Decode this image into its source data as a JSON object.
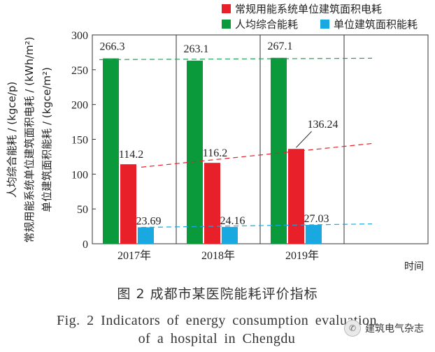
{
  "chart_data": {
    "type": "bar",
    "categories": [
      "2017年",
      "2018年",
      "2019年"
    ],
    "series": [
      {
        "name": "人均综合能耗",
        "color": "#0a9a3c",
        "values": [
          266.3,
          263.1,
          267.1
        ],
        "labels": [
          "266.3",
          "263.1",
          "267.1"
        ]
      },
      {
        "name": "常规用能系统单位建筑面积电耗",
        "color": "#e8202a",
        "values": [
          114.2,
          116.2,
          136.24
        ],
        "labels": [
          "114.2",
          "116.2",
          "136.24"
        ]
      },
      {
        "name": "单位建筑面积能耗",
        "color": "#1aa8e0",
        "values": [
          23.69,
          24.16,
          27.03
        ],
        "labels": [
          "23.69",
          "24.16",
          "27.03"
        ]
      }
    ],
    "trendlines": [
      {
        "series": "人均综合能耗",
        "color": "#2a9a5a",
        "from": 264.5,
        "to": 266.5
      },
      {
        "series": "常规用能系统单位建筑面积电耗",
        "color": "#e8202a",
        "from": 110,
        "to": 144
      },
      {
        "series": "单位建筑面积能耗",
        "color": "#1aa8e0",
        "from": 23.5,
        "to": 28.5
      }
    ],
    "ylim": [
      0,
      300
    ],
    "yticks": [
      0,
      50,
      100,
      150,
      200,
      250,
      300
    ],
    "ylabels": [
      "人均综合能耗 / (kgce/p)",
      "常规用能系统单位建筑面积电耗 / (kWh/m²)",
      "单位建筑面积能耗 / (kgce/m²)"
    ],
    "xlabel": "时间",
    "legend_position": "top-right",
    "legend": {
      "row1": [
        "常规用能系统单位建筑面积电耗"
      ],
      "row2": [
        "人均综合能耗",
        "单位建筑面积能耗"
      ]
    }
  },
  "caption": {
    "cn": "图 2   成都市某医院能耗评价指标",
    "en": "Fig. 2   Indicators of energy consumption evaluation of a hospital in Chengdu"
  },
  "watermark": {
    "text": "建筑电气杂志",
    "icon": "wechat-icon"
  }
}
